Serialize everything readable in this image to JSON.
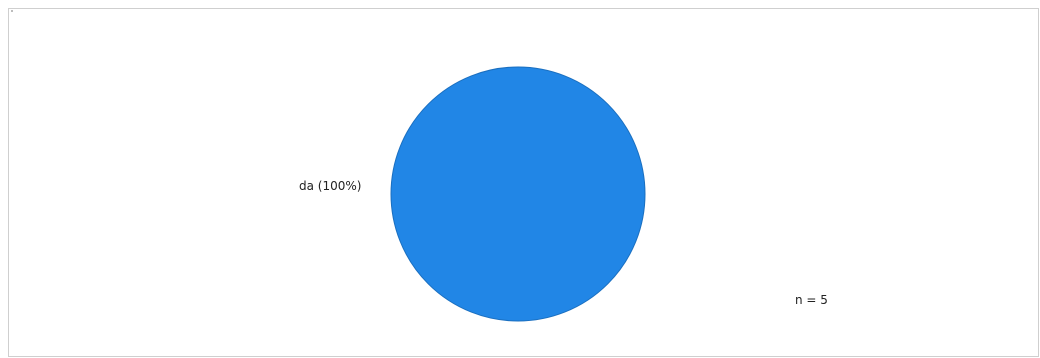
{
  "chart_data": {
    "type": "pie",
    "slices": [
      {
        "label": "da",
        "value": 100,
        "display_label": "da (100%)",
        "color": "#2186e6"
      }
    ],
    "title": "",
    "legend": "none",
    "annotations": [
      {
        "text": "n = 5",
        "position": "bottom-right"
      }
    ]
  },
  "colors": {
    "border": "#cfcfcf",
    "slice_stroke": "#1a6fc0"
  }
}
